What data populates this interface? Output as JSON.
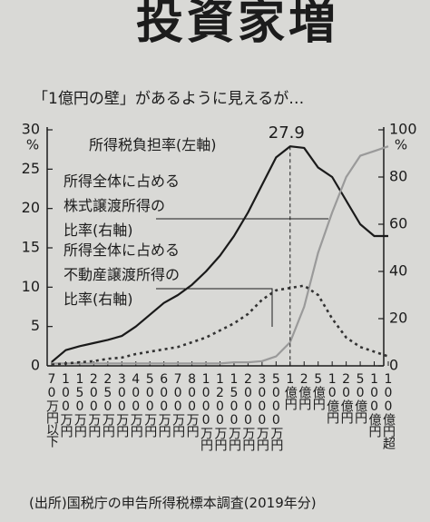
{
  "chart_data": {
    "type": "line",
    "title": "投資家増",
    "subtitle": "「1億円の壁」があるように見えるが…",
    "categories": [
      "70万円以下",
      "100万円",
      "150万円",
      "200万円",
      "250万円",
      "300万円",
      "400万円",
      "500万円",
      "600万円",
      "700万円",
      "800万円",
      "1000万円",
      "1200万円",
      "1500万円",
      "2000万円",
      "3000万円",
      "5000万円",
      "1億円",
      "2億円",
      "5億円",
      "10億円",
      "20億円",
      "50億円",
      "100億円",
      "100億円超"
    ],
    "series": [
      {
        "name": "所得税負担率(左軸)",
        "color": "#1a1a1a",
        "style": "solid",
        "values": [
          0.5,
          2.0,
          2.5,
          2.9,
          3.3,
          3.8,
          5.0,
          6.5,
          8.0,
          9.0,
          10.3,
          12.0,
          14.0,
          16.5,
          19.5,
          23.0,
          26.5,
          27.9,
          27.7,
          25.2,
          24.0,
          21.0,
          18.0,
          16.5,
          16.5
        ]
      },
      {
        "name": "所得全体に占める\n株式譲渡所得の\n比率(右軸)",
        "color": "#9a9a9a",
        "style": "solid",
        "axis": "y2",
        "values": [
          1,
          1,
          1,
          1,
          1,
          1,
          1,
          1,
          1,
          1,
          1,
          1,
          1,
          1.5,
          1.5,
          2,
          4,
          10,
          25,
          48,
          65,
          80,
          89,
          91,
          93
        ]
      },
      {
        "name": "所得全体に占める\n不動産譲渡所得の\n比率(右軸)",
        "color": "#333333",
        "style": "dotted",
        "axis": "y2",
        "values": [
          0.5,
          1,
          1.5,
          2,
          3,
          3.5,
          5,
          6,
          7,
          8,
          10,
          12,
          15,
          18,
          22,
          28,
          32,
          33,
          34,
          30,
          20,
          12,
          8,
          6,
          4
        ]
      }
    ],
    "ylim": [
      0,
      30
    ],
    "yticks": [
      0,
      5,
      10,
      15,
      20,
      25,
      30
    ],
    "y_unit": "%",
    "y2lim": [
      0,
      100
    ],
    "y2ticks": [
      0,
      20,
      40,
      60,
      80,
      100
    ],
    "y2_unit": "%",
    "source": "(出所)国税庁の申告所得税標本調査(2019年分)"
  }
}
